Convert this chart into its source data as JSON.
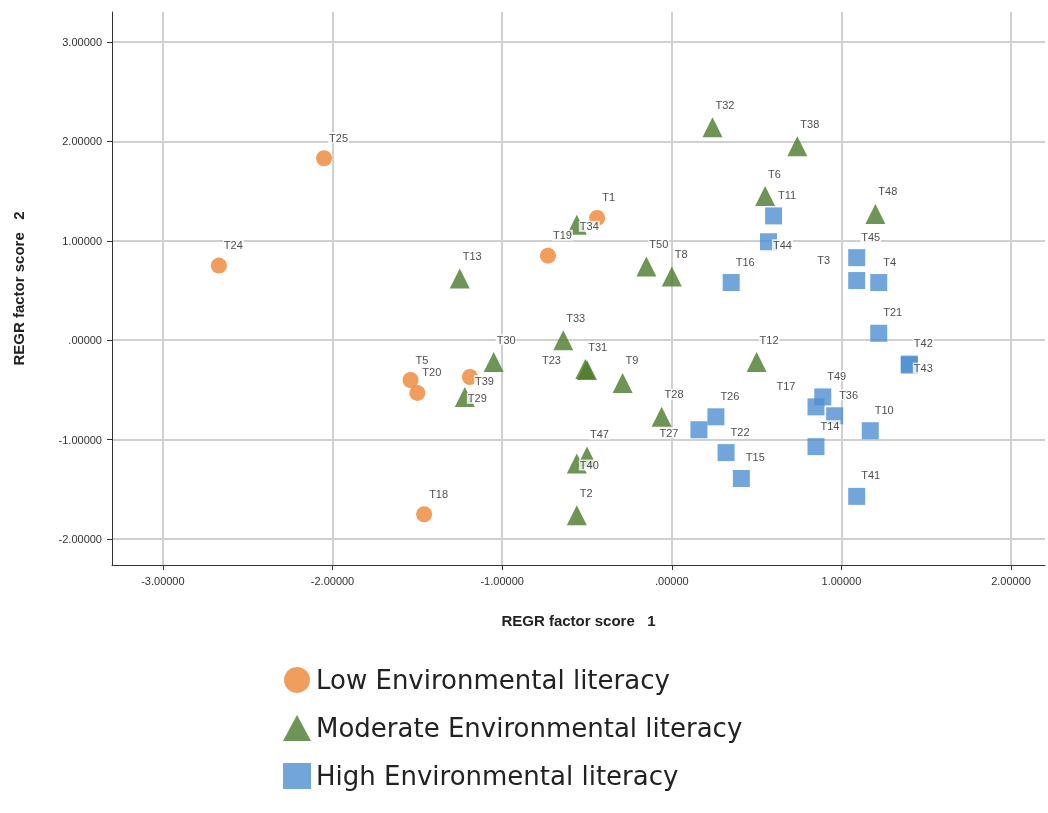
{
  "chart_data": {
    "type": "scatter",
    "xlabel": "REGR factor score   1",
    "ylabel": "REGR factor score   2",
    "xlim": [
      -3.3,
      2.2
    ],
    "ylim": [
      -2.26,
      3.3
    ],
    "xticks": [
      {
        "value": -3,
        "label": "-3.00000"
      },
      {
        "value": -2,
        "label": "-2.00000"
      },
      {
        "value": -1,
        "label": "-1.00000"
      },
      {
        "value": 0,
        "label": ".00000"
      },
      {
        "value": 1,
        "label": "1.00000"
      },
      {
        "value": 2,
        "label": "2.00000"
      }
    ],
    "yticks": [
      {
        "value": -2,
        "label": "-2.00000"
      },
      {
        "value": -1,
        "label": "-1.00000"
      },
      {
        "value": 0,
        "label": ".00000"
      },
      {
        "value": 1,
        "label": "1.00000"
      },
      {
        "value": 2,
        "label": "2.00000"
      },
      {
        "value": 3,
        "label": "3.00000"
      }
    ],
    "grid": true,
    "legend": "bottom",
    "series": [
      {
        "name": "Low Environmental literacy",
        "color": "#ee8534",
        "marker": "circle",
        "x": [
          -2.05,
          -2.67,
          -0.44,
          -0.73,
          -1.54,
          -1.5,
          -1.19,
          -1.46
        ],
        "values": [
          1.83,
          0.75,
          1.23,
          0.85,
          -0.4,
          -0.53,
          -0.37,
          -1.75
        ],
        "value_labels": [
          "T25",
          "T24",
          "T1",
          "T19",
          "T5",
          "T20",
          "T39",
          "T18"
        ]
      },
      {
        "name": "Moderate Environmental literacy",
        "color": "#4a7a2a",
        "marker": "triangle",
        "x": [
          0.24,
          0.74,
          0.55,
          1.2,
          -0.56,
          -1.25,
          -0.15,
          0,
          -0.64,
          -1.05,
          -0.51,
          -0.5,
          -0.29,
          -1.22,
          -0.06,
          0.5,
          -0.5,
          -0.56,
          -0.56
        ],
        "values": [
          2.14,
          1.95,
          1.45,
          1.27,
          1.16,
          0.62,
          0.74,
          0.64,
          0,
          -0.22,
          -0.29,
          -0.3,
          -0.43,
          -0.57,
          -0.77,
          -0.22,
          -1.17,
          -1.24,
          -1.76
        ],
        "value_labels": [
          "T32",
          "T38",
          "T6",
          "T48",
          "T34",
          "T13",
          "T50",
          "T8",
          "T33",
          "T30",
          "T31",
          "T23",
          "T9",
          "T29",
          "T28",
          "T12",
          "T47",
          "T40",
          "T2"
        ]
      },
      {
        "name": "High Environmental literacy",
        "color": "#4f8fd1",
        "marker": "square",
        "x": [
          0.6,
          0.57,
          0.35,
          1.09,
          1.09,
          1.22,
          1.22,
          1.4,
          1.4,
          0.89,
          0.85,
          0.96,
          0.85,
          1.17,
          0.26,
          0.16,
          0.32,
          0.41,
          1.09
        ],
        "values": [
          1.25,
          0.99,
          0.58,
          0.83,
          0.6,
          0.58,
          0.07,
          -0.24,
          -0.25,
          -0.57,
          -0.67,
          -0.76,
          -1.07,
          -0.91,
          -0.77,
          -0.9,
          -1.13,
          -1.39,
          -1.57
        ],
        "value_labels": [
          "T11",
          "T44",
          "T16",
          "T45",
          "T3",
          "T4",
          "T21",
          "T42",
          "T43",
          "T49",
          "T17",
          "T36",
          "T14",
          "T10",
          "T26",
          "T27",
          "T22",
          "T15",
          "T41"
        ]
      }
    ]
  }
}
